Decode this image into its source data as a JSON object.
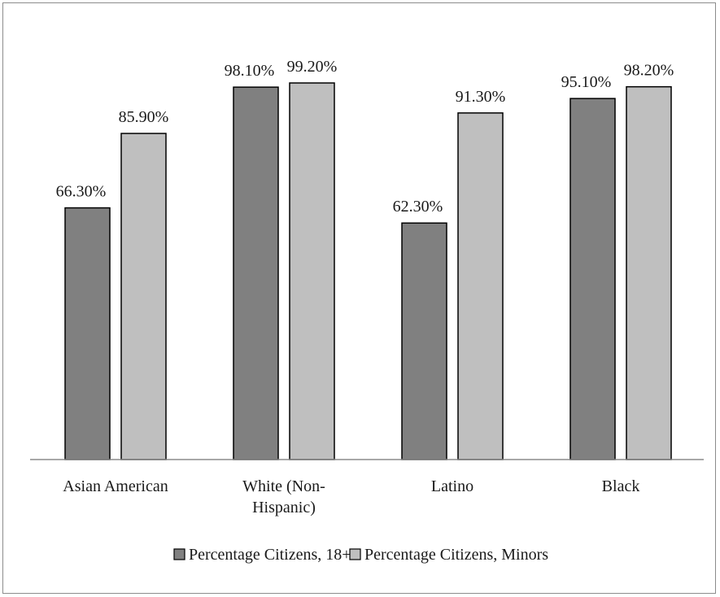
{
  "chart_data": {
    "type": "bar",
    "categories": [
      [
        "Asian American"
      ],
      [
        "White (Non-",
        "Hispanic)"
      ],
      [
        "Latino"
      ],
      [
        "Black"
      ]
    ],
    "series": [
      {
        "name": "Percentage Citizens, 18+",
        "values": [
          66.3,
          98.1,
          62.3,
          95.1
        ],
        "labels": [
          "66.30%",
          "98.10%",
          "62.30%",
          "95.10%"
        ]
      },
      {
        "name": "Percentage Citizens, Minors",
        "values": [
          85.9,
          99.2,
          91.3,
          98.2
        ],
        "labels": [
          "85.90%",
          "99.20%",
          "91.30%",
          "98.20%"
        ]
      }
    ],
    "ylim": [
      0,
      110
    ],
    "grid": false,
    "legend_position": "bottom"
  },
  "colors": {
    "series_18plus": "#808080",
    "series_minors": "#bfbfbf",
    "bar_outline": "#000000",
    "axis": "#8c8c8c",
    "border": "#8c8c8c"
  }
}
